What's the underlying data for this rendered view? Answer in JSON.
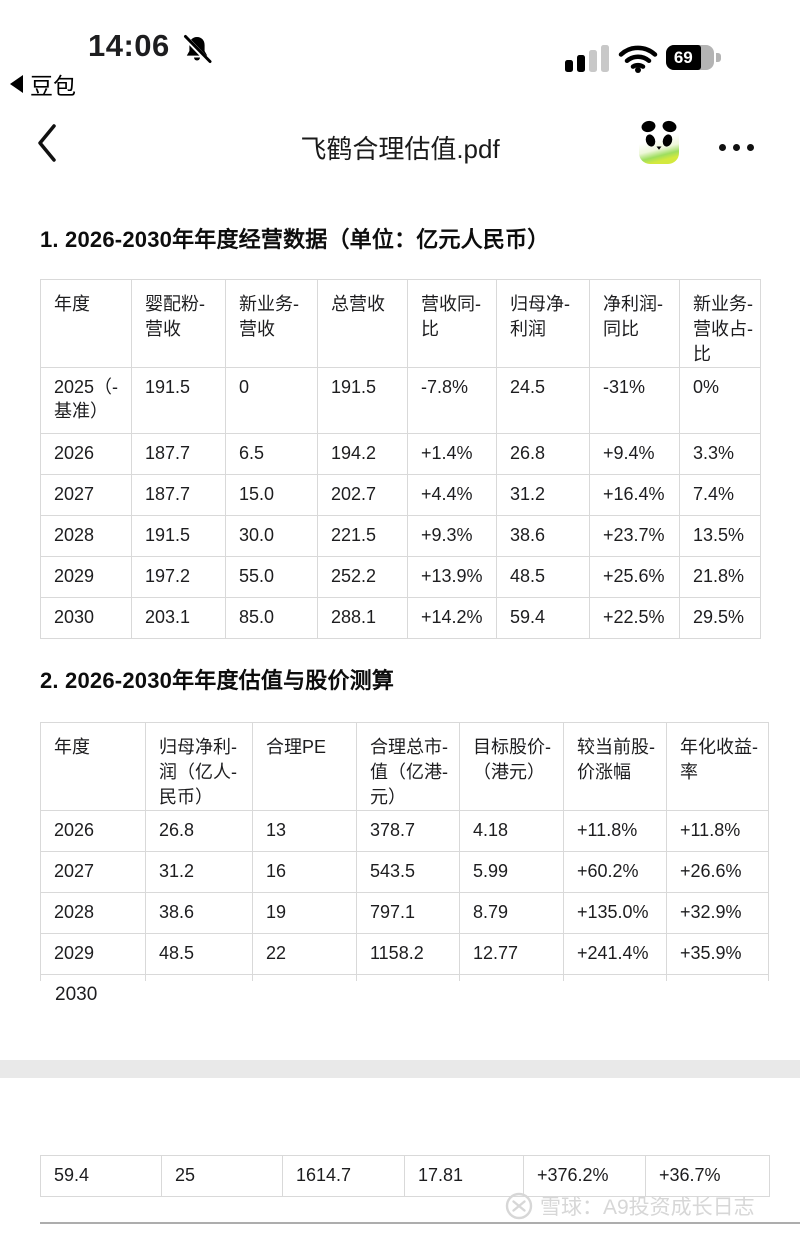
{
  "status_bar": {
    "time": "14:06",
    "back_app": "豆包",
    "battery_percent": "69"
  },
  "nav": {
    "title": "飞鹤合理估值.pdf"
  },
  "sections": {
    "operating_title": "1. 2026-2030年年度经营数据（单位：亿元人民币）",
    "valuation_title": "2. 2026-2030年年度估值与股价测算"
  },
  "tables": {
    "operating": {
      "headers": [
        "年度",
        "婴配粉-\n营收",
        "新业务-\n营收",
        "总营收",
        "营收同-\n比",
        "归母净-\n利润",
        "净利润-\n同比",
        "新业务-\n营收占-\n比"
      ],
      "rows": [
        [
          "2025（-\n基准）",
          "191.5",
          "0",
          "191.5",
          "-7.8%",
          "24.5",
          "-31%",
          "0%"
        ],
        [
          "2026",
          "187.7",
          "6.5",
          "194.2",
          "+1.4%",
          "26.8",
          "+9.4%",
          "3.3%"
        ],
        [
          "2027",
          "187.7",
          "15.0",
          "202.7",
          "+4.4%",
          "31.2",
          "+16.4%",
          "7.4%"
        ],
        [
          "2028",
          "191.5",
          "30.0",
          "221.5",
          "+9.3%",
          "38.6",
          "+23.7%",
          "13.5%"
        ],
        [
          "2029",
          "197.2",
          "55.0",
          "252.2",
          "+13.9%",
          "48.5",
          "+25.6%",
          "21.8%"
        ],
        [
          "2030",
          "203.1",
          "85.0",
          "288.1",
          "+14.2%",
          "59.4",
          "+22.5%",
          "29.5%"
        ]
      ]
    },
    "valuation": {
      "headers": [
        "年度",
        "归母净利-\n润（亿人-\n民币）",
        "合理PE",
        "合理总市-\n值（亿港-\n元）",
        "目标股价-\n（港元）",
        "较当前股-\n价涨幅",
        "年化收益-\n率"
      ],
      "rows": [
        [
          "2026",
          "26.8",
          "13",
          "378.7",
          "4.18",
          "+11.8%",
          "+11.8%"
        ],
        [
          "2027",
          "31.2",
          "16",
          "543.5",
          "5.99",
          "+60.2%",
          "+26.6%"
        ],
        [
          "2028",
          "38.6",
          "19",
          "797.1",
          "8.79",
          "+135.0%",
          "+32.9%"
        ],
        [
          "2029",
          "48.5",
          "22",
          "1158.2",
          "12.77",
          "+241.4%",
          "+35.9%"
        ]
      ],
      "orphan_row_label": "2030"
    },
    "valuation_continued": {
      "rows": [
        [
          "59.4",
          "25",
          "1614.7",
          "17.81",
          "+376.2%",
          "+36.7%"
        ]
      ]
    }
  },
  "watermark": {
    "text": "雪球：A9投资成长日志"
  }
}
